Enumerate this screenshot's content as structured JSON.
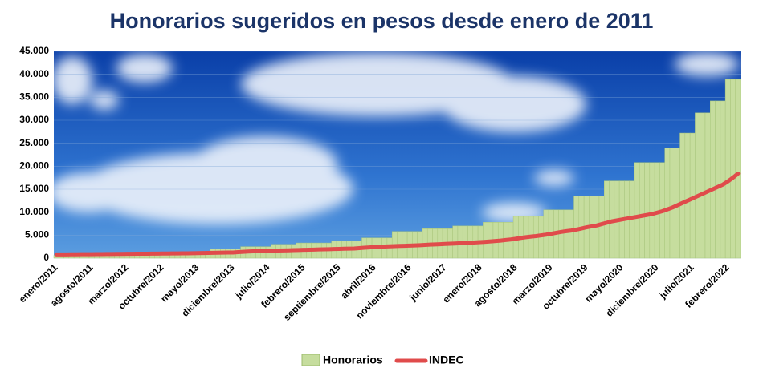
{
  "chart_data": {
    "type": "bar-line",
    "title": "Honorarios sugeridos en pesos desde enero de 2011",
    "categories": [
      "enero/2011",
      null,
      null,
      null,
      null,
      null,
      null,
      "agosto/2011",
      null,
      null,
      null,
      null,
      null,
      null,
      "marzo/2012",
      null,
      null,
      null,
      null,
      null,
      null,
      "octubre/2012",
      null,
      null,
      null,
      null,
      null,
      null,
      "mayo/2013",
      null,
      null,
      null,
      null,
      null,
      null,
      "diciembre/2013",
      null,
      null,
      null,
      null,
      null,
      null,
      "julio/2014",
      null,
      null,
      null,
      null,
      null,
      null,
      "febrero/2015",
      null,
      null,
      null,
      null,
      null,
      null,
      "septiembre/2015",
      null,
      null,
      null,
      null,
      null,
      null,
      "abril/2016",
      null,
      null,
      null,
      null,
      null,
      null,
      "noviembre/2016",
      null,
      null,
      null,
      null,
      null,
      null,
      "junio/2017",
      null,
      null,
      null,
      null,
      null,
      null,
      "enero/2018",
      null,
      null,
      null,
      null,
      null,
      null,
      "agosto/2018",
      null,
      null,
      null,
      null,
      null,
      null,
      "marzo/2019",
      null,
      null,
      null,
      null,
      null,
      null,
      "octubre/2019",
      null,
      null,
      null,
      null,
      null,
      null,
      "mayo/2020",
      null,
      null,
      null,
      null,
      null,
      null,
      "diciembre/2020",
      null,
      null,
      null,
      null,
      null,
      null,
      "julio/2021",
      null,
      null,
      null,
      null,
      null,
      null,
      "febrero/2022",
      null,
      null
    ],
    "series": [
      {
        "name": "Honorarios",
        "type": "bar",
        "color": "#c6dd9e",
        "values": [
          600,
          600,
          600,
          600,
          600,
          600,
          600,
          600,
          600,
          600,
          600,
          600,
          600,
          600,
          600,
          600,
          900,
          900,
          900,
          900,
          900,
          900,
          900,
          900,
          900,
          1300,
          1300,
          1300,
          1300,
          1300,
          1300,
          2000,
          2000,
          2000,
          2000,
          2000,
          2000,
          2500,
          2500,
          2500,
          2500,
          2500,
          2500,
          3000,
          3000,
          3000,
          3000,
          3000,
          3300,
          3300,
          3300,
          3300,
          3300,
          3300,
          3300,
          3800,
          3800,
          3800,
          3800,
          3800,
          3800,
          4400,
          4400,
          4400,
          4400,
          4400,
          4400,
          5800,
          5800,
          5800,
          5800,
          5800,
          5800,
          6400,
          6400,
          6400,
          6400,
          6400,
          6400,
          7000,
          7000,
          7000,
          7000,
          7000,
          7000,
          7800,
          7800,
          7800,
          7800,
          7800,
          7800,
          9100,
          9100,
          9100,
          9100,
          9100,
          9100,
          10500,
          10500,
          10500,
          10500,
          10500,
          10500,
          13500,
          13500,
          13500,
          13500,
          13500,
          13500,
          16800,
          16800,
          16800,
          16800,
          16800,
          16800,
          20800,
          20800,
          20800,
          20800,
          20800,
          20800,
          24000,
          24000,
          24000,
          27200,
          27200,
          27200,
          31600,
          31600,
          31600,
          34200,
          34200,
          34200,
          38900,
          38900,
          38900
        ]
      },
      {
        "name": "INDEC",
        "type": "line",
        "color": "#e04b4b",
        "values": [
          800,
          800,
          810,
          820,
          830,
          840,
          850,
          860,
          870,
          880,
          890,
          900,
          910,
          920,
          930,
          940,
          950,
          960,
          970,
          980,
          990,
          1000,
          1010,
          1020,
          1030,
          1040,
          1050,
          1070,
          1090,
          1110,
          1130,
          1150,
          1170,
          1190,
          1210,
          1230,
          1300,
          1380,
          1440,
          1490,
          1530,
          1560,
          1590,
          1620,
          1650,
          1680,
          1710,
          1740,
          1770,
          1800,
          1830,
          1860,
          1890,
          1920,
          1950,
          1980,
          2010,
          2040,
          2070,
          2100,
          2180,
          2260,
          2340,
          2420,
          2480,
          2530,
          2570,
          2610,
          2650,
          2690,
          2730,
          2770,
          2820,
          2880,
          2940,
          2990,
          3040,
          3090,
          3140,
          3190,
          3240,
          3300,
          3360,
          3420,
          3480,
          3560,
          3640,
          3720,
          3820,
          3940,
          4060,
          4220,
          4400,
          4560,
          4680,
          4800,
          4950,
          5100,
          5300,
          5500,
          5700,
          5860,
          6000,
          6200,
          6450,
          6700,
          6900,
          7100,
          7400,
          7700,
          8000,
          8200,
          8400,
          8600,
          8800,
          9000,
          9200,
          9400,
          9600,
          9900,
          10200,
          10600,
          11000,
          11500,
          12000,
          12500,
          13000,
          13500,
          14000,
          14500,
          15000,
          15500,
          16000,
          16700,
          17500,
          18400
        ]
      }
    ],
    "ylim": [
      0,
      45000
    ],
    "yticks": [
      0,
      {
        "value": 5000,
        "label": "5.000"
      },
      {
        "value": 10000,
        "label": "10.000"
      },
      {
        "value": 15000,
        "label": "15.000"
      },
      {
        "value": 20000,
        "label": "20.000"
      },
      {
        "value": 25000,
        "label": "25.000"
      },
      {
        "value": 30000,
        "label": "30.000"
      },
      {
        "value": 35000,
        "label": "35.000"
      },
      {
        "value": 40000,
        "label": "40.000"
      },
      {
        "value": 45000,
        "label": "45.000"
      }
    ],
    "grid": true,
    "legend": "bottom"
  }
}
